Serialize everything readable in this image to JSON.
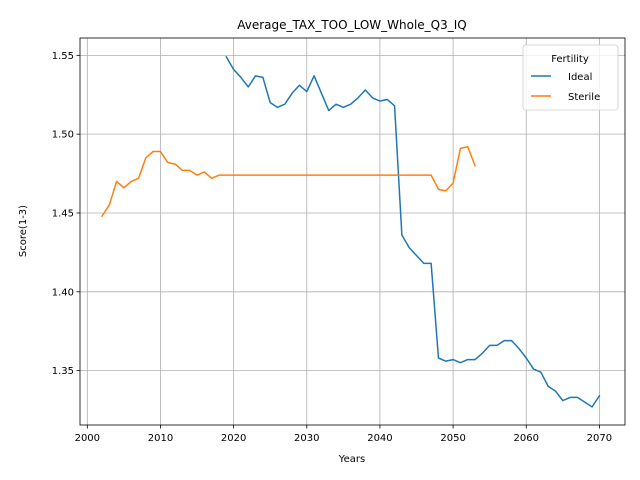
{
  "chart_data": {
    "type": "line",
    "title": "Average_TAX_TOO_LOW_Whole_Q3_IQ",
    "xlabel": "Years",
    "ylabel": "Score(1-3)",
    "xlim": [
      1999,
      2073.5
    ],
    "ylim": [
      1.3155,
      1.561
    ],
    "xticks": [
      2000,
      2010,
      2020,
      2030,
      2040,
      2050,
      2060,
      2070
    ],
    "yticks": [
      1.35,
      1.4,
      1.45,
      1.5,
      1.55
    ],
    "ytick_labels": [
      "1.35",
      "1.40",
      "1.45",
      "1.50",
      "1.55"
    ],
    "grid": true,
    "legend": {
      "title": "Fertility",
      "placement": "top-right"
    },
    "series": [
      {
        "name": "Ideal",
        "color": "#1f77b4",
        "x": [
          2019,
          2020,
          2021,
          2022,
          2023,
          2024,
          2025,
          2026,
          2027,
          2028,
          2029,
          2030,
          2031,
          2032,
          2033,
          2034,
          2035,
          2036,
          2037,
          2038,
          2039,
          2040,
          2041,
          2042,
          2043,
          2044,
          2045,
          2046,
          2047,
          2048,
          2049,
          2050,
          2051,
          2052,
          2053,
          2054,
          2055,
          2056,
          2057,
          2058,
          2059,
          2060,
          2061,
          2062,
          2063,
          2064,
          2065,
          2066,
          2067,
          2068,
          2069,
          2070
        ],
        "y": [
          1.549,
          1.541,
          1.536,
          1.53,
          1.537,
          1.536,
          1.52,
          1.517,
          1.519,
          1.526,
          1.531,
          1.527,
          1.537,
          1.526,
          1.515,
          1.519,
          1.517,
          1.519,
          1.523,
          1.528,
          1.523,
          1.521,
          1.522,
          1.518,
          1.436,
          1.428,
          1.423,
          1.418,
          1.418,
          1.358,
          1.356,
          1.357,
          1.355,
          1.357,
          1.357,
          1.361,
          1.366,
          1.366,
          1.369,
          1.369,
          1.364,
          1.358,
          1.351,
          1.349,
          1.34,
          1.337,
          1.331,
          1.333,
          1.333,
          1.33,
          1.327,
          1.334
        ]
      },
      {
        "name": "Sterile",
        "color": "#ff7f0e",
        "x": [
          2002,
          2003,
          2004,
          2005,
          2006,
          2007,
          2008,
          2009,
          2010,
          2011,
          2012,
          2013,
          2014,
          2015,
          2016,
          2017,
          2018,
          2019,
          2020,
          2021,
          2022,
          2023,
          2024,
          2025,
          2026,
          2027,
          2028,
          2029,
          2030,
          2031,
          2032,
          2033,
          2034,
          2035,
          2036,
          2037,
          2038,
          2039,
          2040,
          2041,
          2042,
          2043,
          2044,
          2045,
          2046,
          2047,
          2048,
          2049,
          2050,
          2051,
          2052,
          2053
        ],
        "y": [
          1.448,
          1.455,
          1.47,
          1.466,
          1.47,
          1.472,
          1.485,
          1.489,
          1.489,
          1.482,
          1.481,
          1.477,
          1.477,
          1.474,
          1.476,
          1.472,
          1.474,
          1.474,
          1.474,
          1.474,
          1.474,
          1.474,
          1.474,
          1.474,
          1.474,
          1.474,
          1.474,
          1.474,
          1.474,
          1.474,
          1.474,
          1.474,
          1.474,
          1.474,
          1.474,
          1.474,
          1.474,
          1.474,
          1.474,
          1.474,
          1.474,
          1.474,
          1.474,
          1.474,
          1.474,
          1.474,
          1.465,
          1.464,
          1.469,
          1.491,
          1.492,
          1.48
        ]
      }
    ]
  }
}
